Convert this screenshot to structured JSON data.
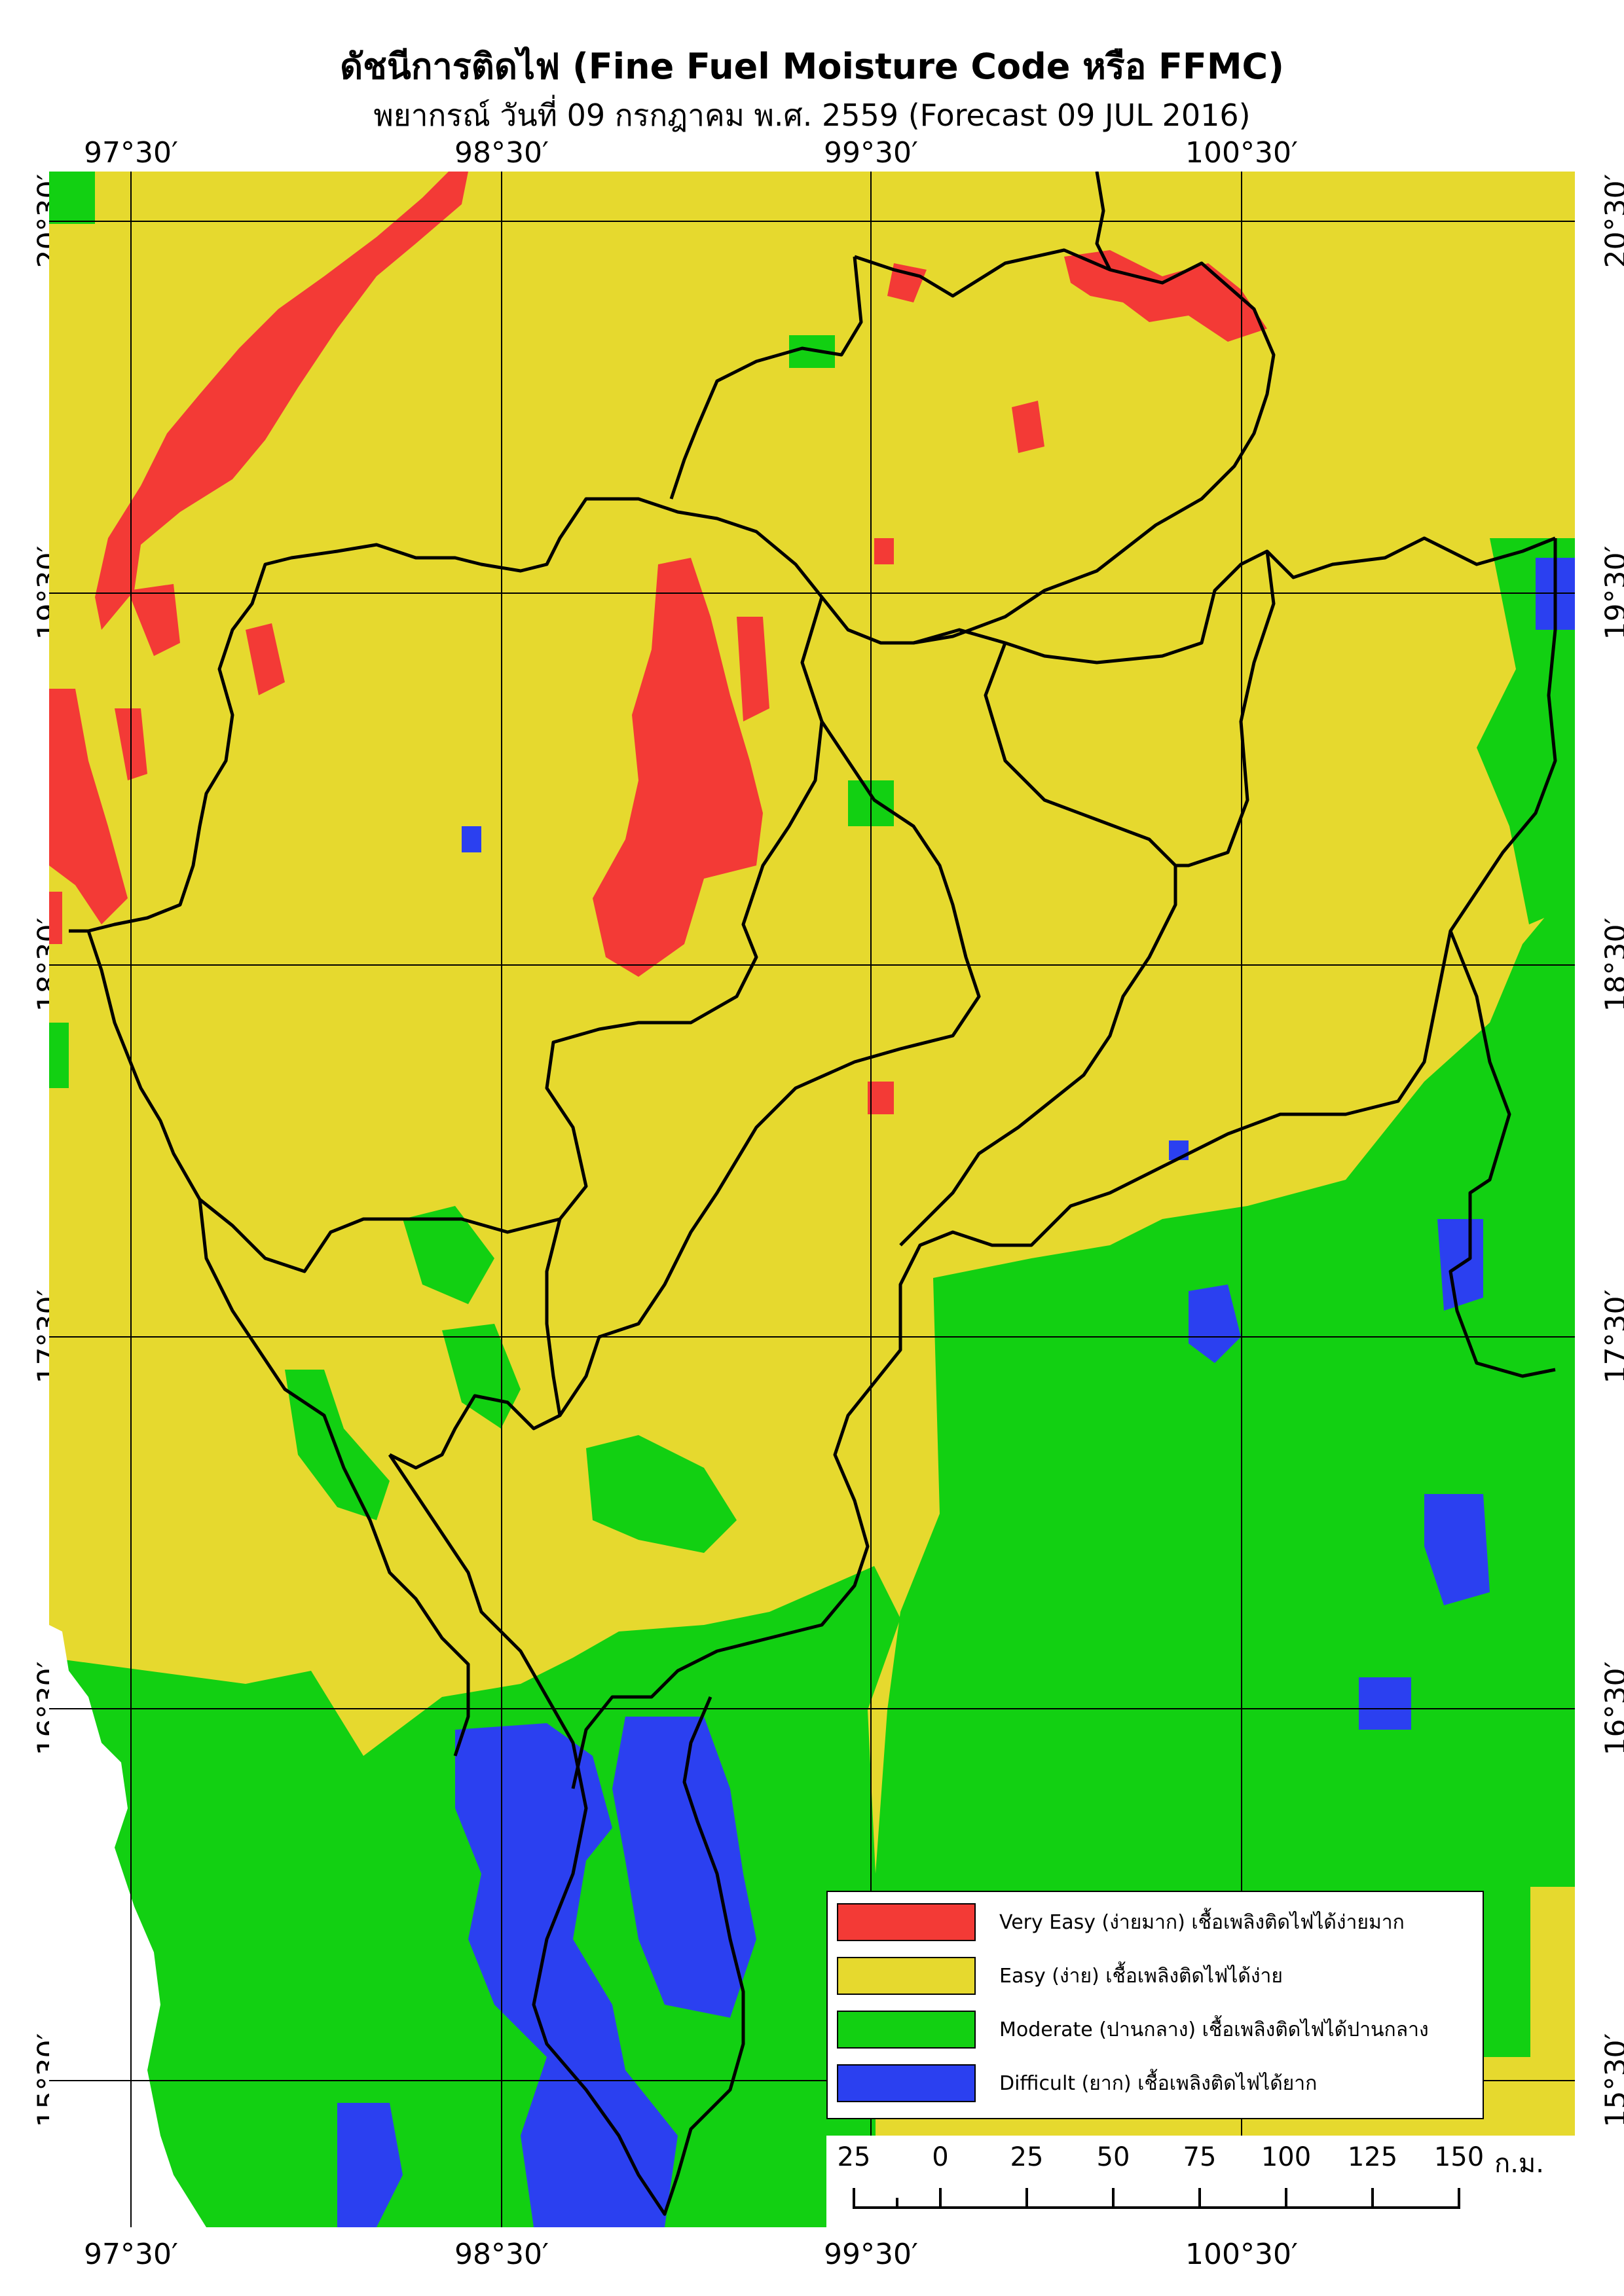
{
  "title": "ดัชนีการติดไฟ (Fine Fuel Moisture Code หรือ FFMC)",
  "subtitle": "พยากรณ์ วันที่ 09 กรกฎาคม พ.ศ. 2559 (Forecast 09 JUL 2016)",
  "longitude_labels": [
    "97°30′",
    "98°30′",
    "99°30′",
    "100°30′"
  ],
  "latitude_labels": [
    "20°30′",
    "19°30′",
    "18°30′",
    "17°30′",
    "16°30′",
    "15°30′"
  ],
  "legend": [
    {
      "label": "Very Easy (ง่ายมาก) เชื้อเพลิงติดไฟได้ง่ายมาก",
      "color": "#f33a36"
    },
    {
      "label": "Easy (ง่าย) เชื้อเพลิงติดไฟได้ง่าย",
      "color": "#e6d92e"
    },
    {
      "label": "Moderate (ปานกลาง) เชื้อเพลิงติดไฟได้ปานกลาง",
      "color": "#12d012"
    },
    {
      "label": "Difficult (ยาก) เชื้อเพลิงติดไฟได้ยาก",
      "color": "#2b40f0"
    }
  ],
  "scale": {
    "labels": [
      "25",
      "0",
      "25",
      "50",
      "75",
      "100",
      "125",
      "150"
    ],
    "unit": "ก.ม."
  }
}
